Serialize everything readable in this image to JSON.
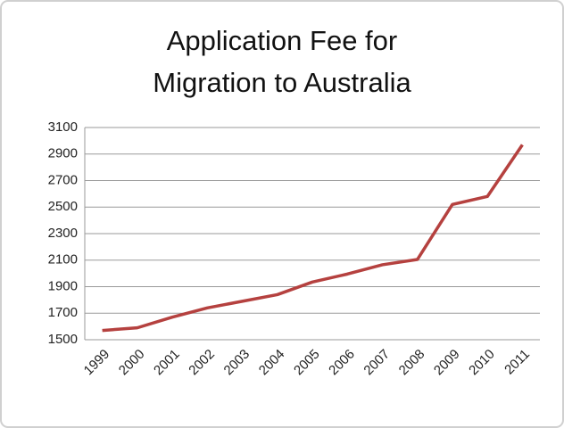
{
  "chart_data": {
    "type": "line",
    "title": [
      "Application Fee for",
      "Migration to Australia"
    ],
    "categories": [
      "1999",
      "2000",
      "2001",
      "2002",
      "2003",
      "2004",
      "2005",
      "2006",
      "2007",
      "2008",
      "2009",
      "2010",
      "2011"
    ],
    "values": [
      1570,
      1590,
      1670,
      1740,
      1790,
      1840,
      1935,
      1995,
      2065,
      2105,
      2520,
      2580,
      2970
    ],
    "color": "#b5413f",
    "ylim": [
      1500,
      3100
    ],
    "yticks": [
      1500,
      1700,
      1900,
      2100,
      2300,
      2500,
      2700,
      2900,
      3100
    ],
    "grid": true
  }
}
